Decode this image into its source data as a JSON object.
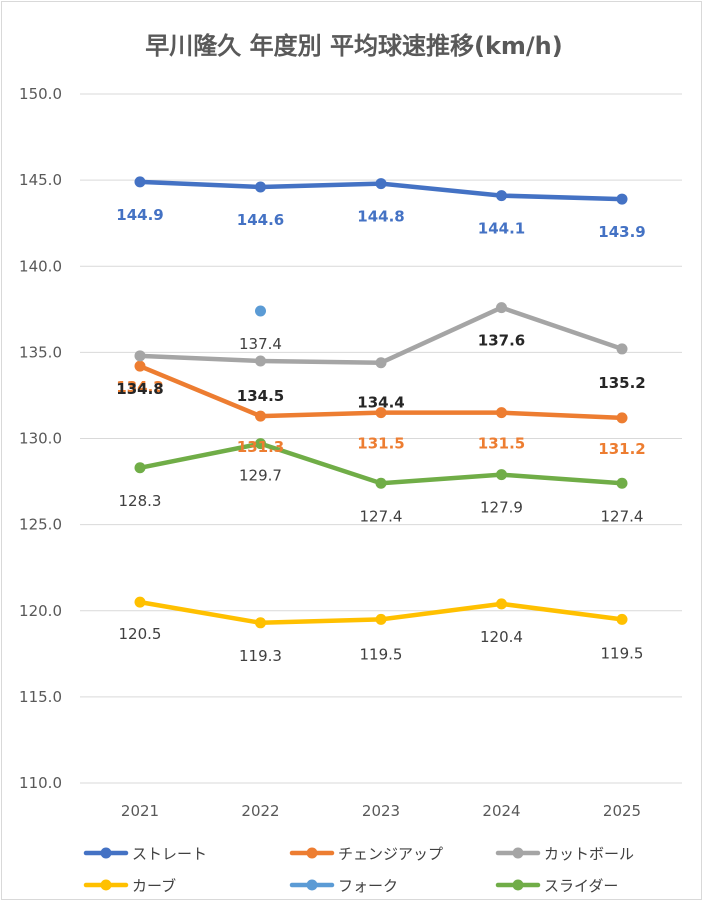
{
  "chart_data": {
    "type": "line",
    "title": "早川隆久 年度別 平均球速推移(km/h)",
    "categories": [
      "2021",
      "2022",
      "2023",
      "2024",
      "2025"
    ],
    "y_ticks": [
      "150.0",
      "145.0",
      "140.0",
      "135.0",
      "130.0",
      "125.0",
      "120.0",
      "115.0",
      "110.0"
    ],
    "ylim": [
      110,
      150
    ],
    "grid": true,
    "legend_position": "bottom",
    "series": [
      {
        "name": "ストレート",
        "color": "#4472C4",
        "label_color": "#4472C4",
        "values": [
          144.9,
          144.6,
          144.8,
          144.1,
          143.9
        ],
        "labels": [
          "144.9",
          "144.6",
          "144.8",
          "144.1",
          "143.9"
        ]
      },
      {
        "name": "チェンジアップ",
        "color": "#ED7D31",
        "label_color": "#ED7D31",
        "values": [
          134.2,
          131.3,
          131.5,
          131.5,
          131.2
        ],
        "labels": [
          "134.2",
          "131.3",
          "131.5",
          "131.5",
          "131.2"
        ]
      },
      {
        "name": "カットボール",
        "color": "#A5A5A5",
        "label_color": "#262626",
        "values": [
          134.8,
          134.5,
          134.4,
          137.6,
          135.2
        ],
        "labels": [
          "134.8",
          "134.5",
          "134.4",
          "137.6",
          "135.2"
        ]
      },
      {
        "name": "カーブ",
        "color": "#FFC000",
        "label_color": "#404040",
        "values": [
          120.5,
          119.3,
          119.5,
          120.4,
          119.5
        ],
        "labels": [
          "120.5",
          "119.3",
          "119.5",
          "120.4",
          "119.5"
        ]
      },
      {
        "name": "フォーク",
        "color": "#5B9BD5",
        "label_color": "#404040",
        "values": [
          null,
          137.4,
          null,
          null,
          null
        ],
        "labels": [
          "",
          "137.4",
          "",
          "",
          ""
        ]
      },
      {
        "name": "スライダー",
        "color": "#70AD47",
        "label_color": "#404040",
        "values": [
          128.3,
          129.7,
          127.4,
          127.9,
          127.4
        ],
        "labels": [
          "128.3",
          "129.7",
          "127.4",
          "127.9",
          "127.4"
        ]
      }
    ]
  }
}
